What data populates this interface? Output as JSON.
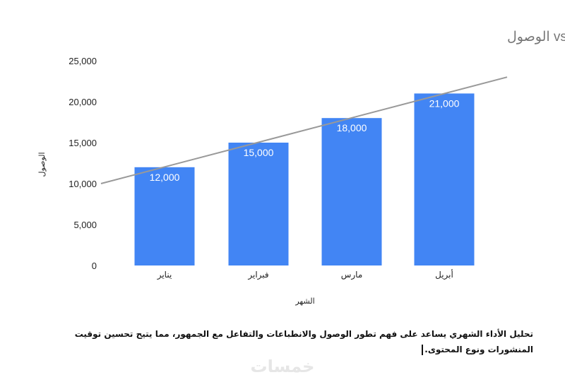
{
  "chart_data": {
    "type": "bar",
    "title": "الشهر .vs الوصول",
    "xlabel": "الشهر",
    "ylabel": "الوصول",
    "categories": [
      "يناير",
      "فبراير",
      "مارس",
      "أبريل"
    ],
    "values": [
      12000,
      15000,
      18000,
      21000
    ],
    "value_labels": [
      "12,000",
      "15,000",
      "18,000",
      "21,000"
    ],
    "ylim": [
      0,
      25000
    ],
    "y_ticks": [
      0,
      5000,
      10000,
      15000,
      20000,
      25000
    ],
    "y_tick_labels": [
      "0",
      "5,000",
      "10,000",
      "15,000",
      "20,000",
      "25,000"
    ],
    "trendline": {
      "start_value": 10000,
      "end_value": 23000,
      "color": "#999999"
    },
    "bar_color": "#4285f4",
    "grid": false,
    "legend": "none"
  },
  "caption": "تحليل الأداء الشهري يساعد على فهم تطور الوصول والانطباعات والتفاعل مع الجمهور، مما يتيح تحسين توقيت المنشورات ونوع المحتوى.",
  "watermark": "خمسات"
}
